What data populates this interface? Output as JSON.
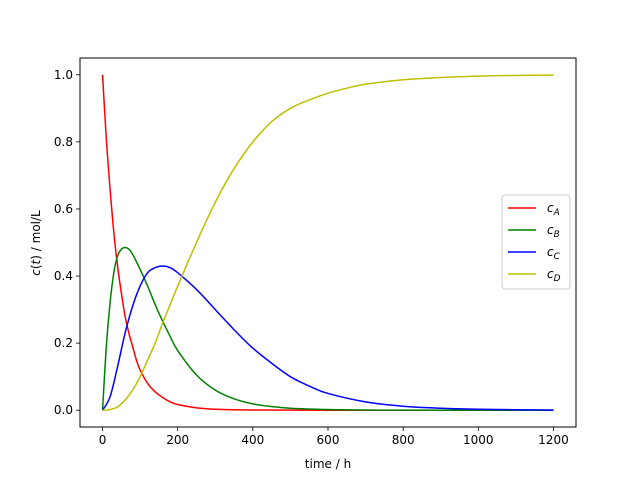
{
  "chart_data": {
    "type": "line",
    "xlabel": "time / h",
    "ylabel_parts": {
      "c": "c",
      "t": "t",
      "unit": ") / mol/L"
    },
    "xlim": [
      -60,
      1260
    ],
    "ylim": [
      -0.05,
      1.05
    ],
    "xticks": [
      0,
      200,
      400,
      600,
      800,
      1000,
      1200
    ],
    "xtick_labels": [
      "0",
      "200",
      "400",
      "600",
      "800",
      "1000",
      "1200"
    ],
    "yticks": [
      0.0,
      0.2,
      0.4,
      0.6,
      0.8,
      1.0
    ],
    "ytick_labels": [
      "0.0",
      "0.2",
      "0.4",
      "0.6",
      "0.8",
      "1.0"
    ],
    "grid": false,
    "legend_position": "center-right",
    "series": [
      {
        "name": "cA",
        "label_base": "c",
        "label_sub": "A",
        "color": "#ff0000",
        "x": [
          0,
          10,
          20,
          30,
          40,
          50,
          60,
          70,
          80,
          90,
          100,
          120,
          140,
          160,
          180,
          200,
          250,
          300,
          400,
          600,
          800,
          1000,
          1200
        ],
        "y": [
          1.0,
          0.81,
          0.66,
          0.53,
          0.43,
          0.35,
          0.28,
          0.23,
          0.19,
          0.15,
          0.12,
          0.08,
          0.055,
          0.038,
          0.025,
          0.017,
          0.007,
          0.003,
          0.0008,
          0.0001,
          0.0,
          0.0,
          0.0
        ]
      },
      {
        "name": "cB",
        "label_base": "c",
        "label_sub": "B",
        "color": "#008000",
        "x": [
          0,
          10,
          20,
          30,
          40,
          50,
          60,
          70,
          80,
          100,
          120,
          140,
          160,
          180,
          200,
          250,
          300,
          350,
          400,
          450,
          500,
          600,
          700,
          800,
          1000,
          1200
        ],
        "y": [
          0.0,
          0.19,
          0.32,
          0.41,
          0.46,
          0.48,
          0.485,
          0.48,
          0.465,
          0.42,
          0.37,
          0.315,
          0.265,
          0.22,
          0.178,
          0.105,
          0.06,
          0.034,
          0.019,
          0.011,
          0.006,
          0.002,
          0.0006,
          0.0002,
          0.0,
          0.0
        ]
      },
      {
        "name": "cC",
        "label_base": "c",
        "label_sub": "C",
        "color": "#0000ff",
        "x": [
          0,
          20,
          40,
          60,
          80,
          100,
          120,
          140,
          160,
          180,
          200,
          250,
          300,
          350,
          400,
          450,
          500,
          550,
          600,
          700,
          800,
          900,
          1000,
          1100,
          1200
        ],
        "y": [
          0.0,
          0.04,
          0.13,
          0.23,
          0.31,
          0.37,
          0.41,
          0.425,
          0.43,
          0.425,
          0.41,
          0.36,
          0.3,
          0.24,
          0.185,
          0.14,
          0.1,
          0.072,
          0.05,
          0.025,
          0.012,
          0.006,
          0.003,
          0.0015,
          0.0007
        ]
      },
      {
        "name": "cD",
        "label_base": "c",
        "label_sub": "D",
        "color": "#bfbf00",
        "x": [
          0,
          20,
          40,
          60,
          80,
          100,
          120,
          140,
          160,
          180,
          200,
          250,
          300,
          350,
          400,
          450,
          500,
          550,
          600,
          650,
          700,
          800,
          900,
          1000,
          1100,
          1200
        ],
        "y": [
          0.0,
          0.002,
          0.01,
          0.03,
          0.06,
          0.1,
          0.15,
          0.2,
          0.26,
          0.315,
          0.37,
          0.5,
          0.62,
          0.72,
          0.8,
          0.86,
          0.9,
          0.925,
          0.945,
          0.96,
          0.972,
          0.985,
          0.992,
          0.996,
          0.998,
          0.999
        ]
      }
    ]
  }
}
